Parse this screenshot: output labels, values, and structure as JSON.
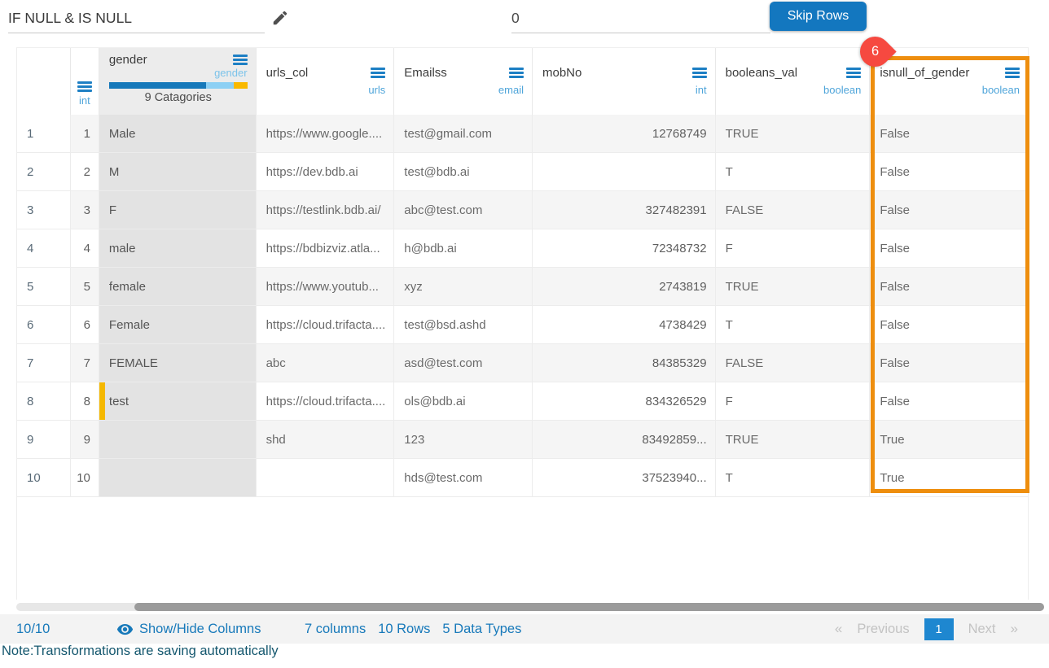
{
  "toolbar": {
    "transform_name": "IF NULL & IS NULL",
    "skip_rows_value": "0",
    "skip_rows_button": "Skip Rows"
  },
  "column_marker": {
    "value": "6",
    "color": "#f64940"
  },
  "table": {
    "columns": [
      {
        "key": "index",
        "name": "",
        "type": ""
      },
      {
        "key": "sno",
        "name": "",
        "type": "int"
      },
      {
        "key": "gender",
        "name": "gender",
        "type": "gender",
        "categories_label": "9 Catagories",
        "summary_bar": [
          70,
          20,
          10
        ],
        "summary_bar_colors": [
          "#1779ba",
          "#8dd0f4",
          "#f9b900"
        ]
      },
      {
        "key": "urls_col",
        "name": "urls_col",
        "type": "urls"
      },
      {
        "key": "Emailss",
        "name": "Emailss",
        "type": "email"
      },
      {
        "key": "mobNo",
        "name": "mobNo",
        "type": "int"
      },
      {
        "key": "booleans_val",
        "name": "booleans_val",
        "type": "boolean"
      },
      {
        "key": "isnull_of_gender",
        "name": "isnull_of_gender",
        "type": "boolean"
      }
    ],
    "rows": [
      [
        "1",
        "1",
        "Male",
        "https://www.google....",
        "test@gmail.com",
        "12768749",
        "TRUE",
        "False"
      ],
      [
        "2",
        "2",
        "M",
        "https://dev.bdb.ai",
        "test@bdb.ai",
        "",
        "T",
        "False"
      ],
      [
        "3",
        "3",
        "F",
        "https://testlink.bdb.ai/",
        "abc@test.com",
        "327482391",
        "FALSE",
        "False"
      ],
      [
        "4",
        "4",
        "male",
        "https://bdbizviz.atla...",
        "h@bdb.ai",
        "72348732",
        "F",
        "False"
      ],
      [
        "5",
        "5",
        "female",
        "https://www.youtub...",
        "xyz",
        "2743819",
        "TRUE",
        "False"
      ],
      [
        "6",
        "6",
        "Female",
        "https://cloud.trifacta....",
        "test@bsd.ashd",
        "4738429",
        "T",
        "False"
      ],
      [
        "7",
        "7",
        "FEMALE",
        "abc",
        "asd@test.com",
        "84385329",
        "FALSE",
        "False"
      ],
      [
        "8",
        "8",
        "test",
        "https://cloud.trifacta....",
        "ols@bdb.ai",
        "834326529",
        "F",
        "False"
      ],
      [
        "9",
        "9",
        "",
        "shd",
        "123",
        "83492859...",
        "TRUE",
        "True"
      ],
      [
        "10",
        "10",
        "",
        "",
        "hds@test.com",
        "37523940...",
        "T",
        "True"
      ]
    ],
    "flagged_cell": {
      "row": 8,
      "column": "gender",
      "flag_color": "#f5b800"
    },
    "highlighted_column": "isnull_of_gender",
    "highlight_color": "#ee8e0e"
  },
  "footer": {
    "rows_shown": "10/10",
    "show_hide_label": "Show/Hide Columns",
    "stats": [
      "7 columns",
      "10 Rows",
      "5 Data Types"
    ],
    "pagination": {
      "prev_symbol": "«",
      "prev_label": "Previous",
      "current_page": "1",
      "next_label": "Next",
      "next_symbol": "»"
    }
  },
  "note": "Note:Transformations are saving automatically",
  "colors": {
    "accent_blue": "#1779ba",
    "button_blue": "#1377bf"
  }
}
